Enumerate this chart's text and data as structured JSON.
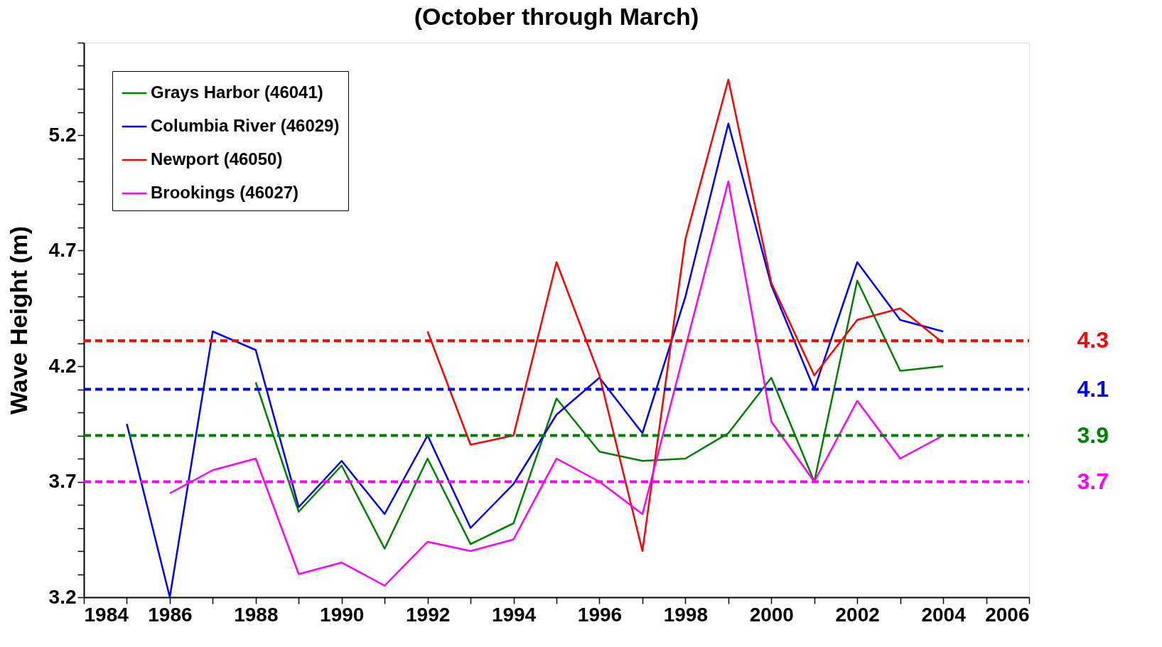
{
  "chart_data": {
    "type": "line",
    "title": "(October through March)",
    "ylabel": "Wave Height (m)",
    "x": [
      1985,
      1986,
      1987,
      1988,
      1989,
      1990,
      1991,
      1992,
      1993,
      1994,
      1995,
      1996,
      1997,
      1998,
      1999,
      2000,
      2001,
      2002,
      2003,
      2004
    ],
    "series": [
      {
        "name": "Grays Harbor (46041)",
        "color": "#008000",
        "values": [
          null,
          null,
          null,
          4.13,
          3.57,
          3.77,
          3.41,
          3.8,
          3.43,
          3.52,
          4.06,
          3.83,
          3.79,
          3.8,
          3.91,
          4.15,
          3.7,
          4.57,
          4.18,
          4.2
        ]
      },
      {
        "name": "Columbia River (46029)",
        "color": "#0000ff",
        "values": [
          3.95,
          3.2,
          4.35,
          4.27,
          3.59,
          3.79,
          3.56,
          3.9,
          3.5,
          3.69,
          3.99,
          4.15,
          3.91,
          4.5,
          5.25,
          4.55,
          4.1,
          4.65,
          4.4,
          4.35
        ]
      },
      {
        "name": "Newport (46050)",
        "color": "#ff0000",
        "values": [
          null,
          null,
          null,
          null,
          null,
          null,
          null,
          4.35,
          3.86,
          3.9,
          4.65,
          4.16,
          3.4,
          4.75,
          5.44,
          4.56,
          4.16,
          4.4,
          4.45,
          4.3
        ]
      },
      {
        "name": "Brookings (46027)",
        "color": "#ff00ff",
        "values": [
          null,
          3.65,
          3.75,
          3.8,
          3.3,
          3.35,
          3.25,
          3.44,
          3.4,
          3.45,
          3.8,
          3.7,
          3.56,
          4.28,
          5.0,
          3.96,
          3.7,
          4.05,
          3.8,
          3.9
        ]
      }
    ],
    "ref_lines": [
      {
        "axis": "y",
        "value": 4.31,
        "label": "4.3",
        "color": "#ff0000",
        "line_style": "dashed"
      },
      {
        "axis": "y",
        "value": 4.1,
        "label": "4.1",
        "color": "#0000ff",
        "line_style": "dashed"
      },
      {
        "axis": "y",
        "value": 3.9,
        "label": "3.9",
        "color": "#008000",
        "line_style": "dashed"
      },
      {
        "axis": "y",
        "value": 3.7,
        "label": "3.7",
        "color": "#ff00ff",
        "line_style": "dashed"
      }
    ],
    "xlim": [
      1984,
      2006
    ],
    "xticks": [
      1984,
      {
        "value": 1985,
        "label": null
      },
      1986,
      {
        "value": 1987,
        "label": null
      },
      1988,
      {
        "value": 1989,
        "label": null
      },
      1990,
      {
        "value": 1991,
        "label": null
      },
      1992,
      {
        "value": 1993,
        "label": null
      },
      1994,
      {
        "value": 1995,
        "label": null
      },
      1996,
      {
        "value": 1997,
        "label": null
      },
      1998,
      {
        "value": 1999,
        "label": null
      },
      2000,
      {
        "value": 2001,
        "label": null
      },
      2002,
      {
        "value": 2003,
        "label": null
      },
      2004,
      {
        "value": 2005,
        "label": null
      },
      2006
    ],
    "ylim": [
      3.2,
      5.6
    ],
    "yticks": [
      3.2,
      {
        "value": 3.3,
        "label": null
      },
      {
        "value": 3.4,
        "label": null
      },
      {
        "value": 3.5,
        "label": null
      },
      {
        "value": 3.6,
        "label": null
      },
      3.7,
      {
        "value": 3.8,
        "label": null
      },
      {
        "value": 3.9,
        "label": null
      },
      {
        "value": 4.0,
        "label": null
      },
      {
        "value": 4.1,
        "label": null
      },
      4.2,
      {
        "value": 4.3,
        "label": null
      },
      {
        "value": 4.4,
        "label": null
      },
      {
        "value": 4.5,
        "label": null
      },
      {
        "value": 4.6,
        "label": null
      },
      4.7,
      {
        "value": 4.8,
        "label": null
      },
      {
        "value": 4.9,
        "label": null
      },
      {
        "value": 5.0,
        "label": null
      },
      {
        "value": 5.1,
        "label": null
      },
      5.2,
      {
        "value": 5.3,
        "label": null
      },
      {
        "value": 5.4,
        "label": null
      },
      {
        "value": 5.5,
        "label": null
      },
      {
        "value": 5.6,
        "label": null
      }
    ],
    "grid": false,
    "legend": "top left",
    "marker": "none",
    "line_style": "solid"
  }
}
